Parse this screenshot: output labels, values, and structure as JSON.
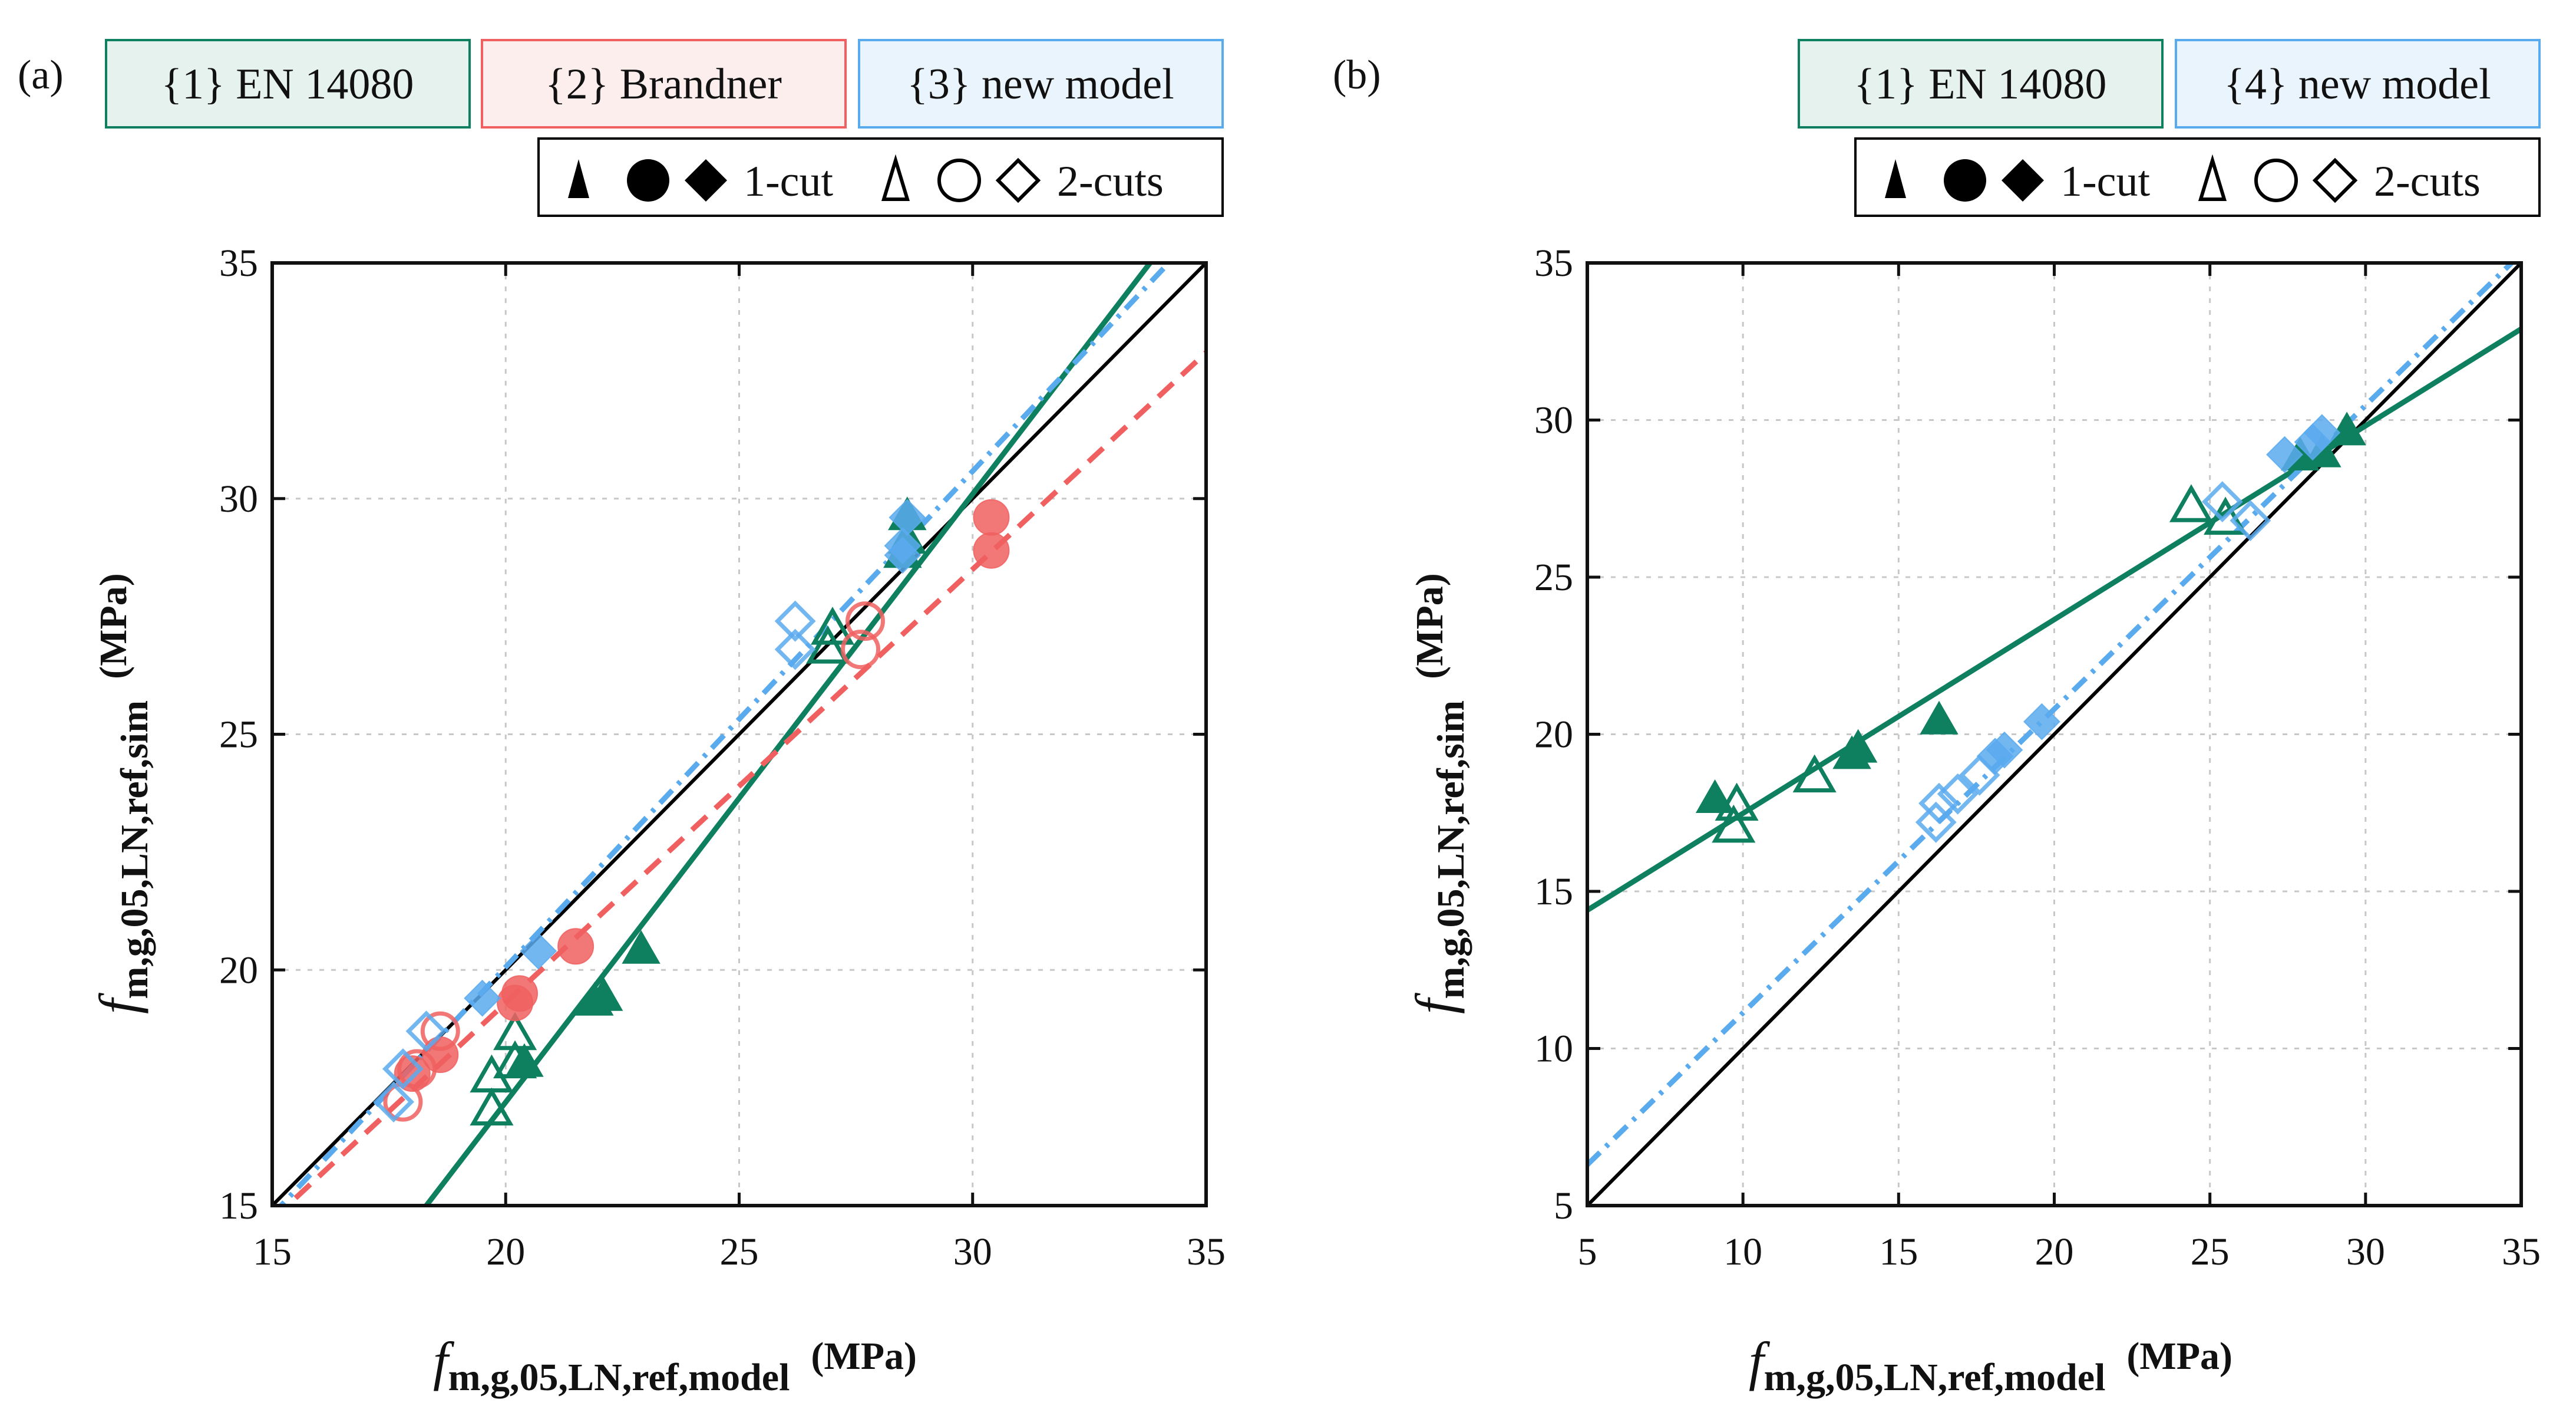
{
  "chart_data": [
    {
      "panel": "(a)",
      "type": "scatter",
      "xlabel": {
        "symbol": "f",
        "subscript": "m,g,05,LN,ref,model",
        "unit": "(MPa)"
      },
      "ylabel": {
        "symbol": "f",
        "subscript": "m,g,05,LN,ref,sim",
        "unit": "(MPa)"
      },
      "xlim": [
        15,
        35
      ],
      "ylim": [
        15,
        35
      ],
      "xticks": [
        "15",
        "20",
        "25",
        "30",
        "35"
      ],
      "yticks": [
        "15",
        "20",
        "25",
        "30",
        "35"
      ],
      "grid": true,
      "legend_lines": [
        {
          "label": "{1} EN 14080",
          "color": "#0e8060",
          "bg": "#e6f2ee"
        },
        {
          "label": "{2} Brandner",
          "color": "#f06060",
          "bg": "#fdeeee"
        },
        {
          "label": "{3} new model",
          "color": "#5aaaee",
          "bg": "#eaf4fd"
        }
      ],
      "legend_markers": {
        "one_cut": "1-cut",
        "two_cuts": "2-cuts"
      },
      "lines": [
        {
          "name": "reference 1:1",
          "color": "#000000",
          "style": "solid",
          "x": [
            15,
            35
          ],
          "y": [
            15,
            35
          ]
        },
        {
          "name": "{1} EN 14080",
          "color": "#0e8060",
          "style": "solid",
          "x": [
            18.3,
            33.8
          ],
          "y": [
            15,
            35
          ]
        },
        {
          "name": "{2} Brandner",
          "color": "#f06060",
          "style": "dashed",
          "x": [
            15,
            35
          ],
          "y": [
            14.7,
            33.1
          ]
        },
        {
          "name": "{3} new model",
          "color": "#5aaaee",
          "style": "dashdot",
          "x": [
            15,
            34.2
          ],
          "y": [
            14.8,
            35
          ]
        }
      ],
      "series": [
        {
          "name": "EN 14080 1-cut",
          "model": "{1}",
          "cut": "1-cut",
          "shape": "triangle",
          "color": "#0e8060",
          "filled": true,
          "x": [
            20.4,
            21.9,
            22.1,
            22.9,
            28.5,
            28.6,
            28.6
          ],
          "y": [
            18.0,
            19.3,
            19.4,
            20.4,
            28.8,
            29.1,
            29.6
          ]
        },
        {
          "name": "EN 14080 2-cuts",
          "model": "{1}",
          "cut": "2-cuts",
          "shape": "triangle",
          "color": "#0e8060",
          "filled": false,
          "x": [
            19.7,
            19.7,
            20.2,
            20.2,
            26.9,
            27.0
          ],
          "y": [
            17.0,
            17.7,
            18.0,
            18.6,
            26.8,
            27.2
          ]
        },
        {
          "name": "Brandner 1-cut",
          "model": "{2}",
          "cut": "1-cut",
          "shape": "circle",
          "color": "#f06060",
          "filled": true,
          "x": [
            18.0,
            18.6,
            20.2,
            20.3,
            21.5,
            30.4,
            30.4
          ],
          "y": [
            17.8,
            18.2,
            19.3,
            19.5,
            20.5,
            28.9,
            29.6
          ]
        },
        {
          "name": "Brandner 2-cuts",
          "model": "{2}",
          "cut": "2-cuts",
          "shape": "circle",
          "color": "#f06060",
          "filled": false,
          "x": [
            17.8,
            18.1,
            18.6,
            27.6,
            27.7
          ],
          "y": [
            17.2,
            17.9,
            18.7,
            26.8,
            27.4
          ]
        },
        {
          "name": "new model 1-cut",
          "model": "{3}",
          "cut": "1-cut",
          "shape": "diamond",
          "color": "#5aaaee",
          "filled": true,
          "x": [
            19.5,
            20.7,
            28.5,
            28.5,
            28.6
          ],
          "y": [
            19.4,
            20.4,
            28.8,
            29.0,
            29.6
          ]
        },
        {
          "name": "new model 2-cuts",
          "model": "{3}",
          "cut": "2-cuts",
          "shape": "diamond",
          "color": "#5aaaee",
          "filled": false,
          "x": [
            17.6,
            17.8,
            18.3,
            26.2,
            26.2
          ],
          "y": [
            17.2,
            17.9,
            18.7,
            26.8,
            27.4
          ]
        }
      ]
    },
    {
      "panel": "(b)",
      "type": "scatter",
      "xlabel": {
        "symbol": "f",
        "subscript": "m,g,05,LN,ref,model",
        "unit": "(MPa)"
      },
      "ylabel": {
        "symbol": "f",
        "subscript": "m,g,05,LN,ref,sim",
        "unit": "(MPa)"
      },
      "xlim": [
        5,
        35
      ],
      "ylim": [
        5,
        35
      ],
      "xticks": [
        "5",
        "10",
        "15",
        "20",
        "25",
        "30",
        "35"
      ],
      "yticks": [
        "5",
        "10",
        "15",
        "20",
        "25",
        "30",
        "35"
      ],
      "grid": true,
      "legend_lines": [
        {
          "label": "{1} EN 14080",
          "color": "#0e8060",
          "bg": "#e6f2ee"
        },
        {
          "label": "{4} new model",
          "color": "#5aaaee",
          "bg": "#eaf4fd"
        }
      ],
      "legend_markers": {
        "one_cut": "1-cut",
        "two_cuts": "2-cuts"
      },
      "lines": [
        {
          "name": "reference 1:1",
          "color": "#000000",
          "style": "solid",
          "x": [
            5,
            35
          ],
          "y": [
            5,
            35
          ]
        },
        {
          "name": "{1} EN 14080",
          "color": "#0e8060",
          "style": "solid",
          "x": [
            5,
            35
          ],
          "y": [
            14.4,
            32.9
          ]
        },
        {
          "name": "{4} new model",
          "color": "#5aaaee",
          "style": "dashdot",
          "x": [
            5,
            35
          ],
          "y": [
            6.3,
            35.3
          ]
        }
      ],
      "series": [
        {
          "name": "EN 14080 1-cut",
          "model": "{1}",
          "cut": "1-cut",
          "shape": "triangle",
          "color": "#0e8060",
          "filled": true,
          "x": [
            9.1,
            13.5,
            13.7,
            16.3,
            27.9,
            28.6,
            29.4
          ],
          "y": [
            17.9,
            19.3,
            19.5,
            20.4,
            28.8,
            28.9,
            29.6
          ]
        },
        {
          "name": "EN 14080 2-cuts",
          "model": "{1}",
          "cut": "2-cuts",
          "shape": "triangle",
          "color": "#0e8060",
          "filled": false,
          "x": [
            9.7,
            9.8,
            12.3,
            24.4,
            25.5
          ],
          "y": [
            17.0,
            17.7,
            18.6,
            27.2,
            26.8
          ]
        },
        {
          "name": "new model 1-cut",
          "model": "{4}",
          "cut": "1-cut",
          "shape": "diamond",
          "color": "#5aaaee",
          "filled": true,
          "x": [
            18.1,
            18.4,
            19.6,
            27.4,
            28.3,
            28.6
          ],
          "y": [
            19.3,
            19.5,
            20.4,
            28.9,
            29.3,
            29.6
          ]
        },
        {
          "name": "new model 2-cuts",
          "model": "{4}",
          "cut": "2-cuts",
          "shape": "diamond",
          "color": "#5aaaee",
          "filled": false,
          "x": [
            16.2,
            16.3,
            16.9,
            17.6,
            25.4,
            26.3
          ],
          "y": [
            17.2,
            17.8,
            18.1,
            18.7,
            27.4,
            26.8
          ]
        }
      ]
    }
  ]
}
